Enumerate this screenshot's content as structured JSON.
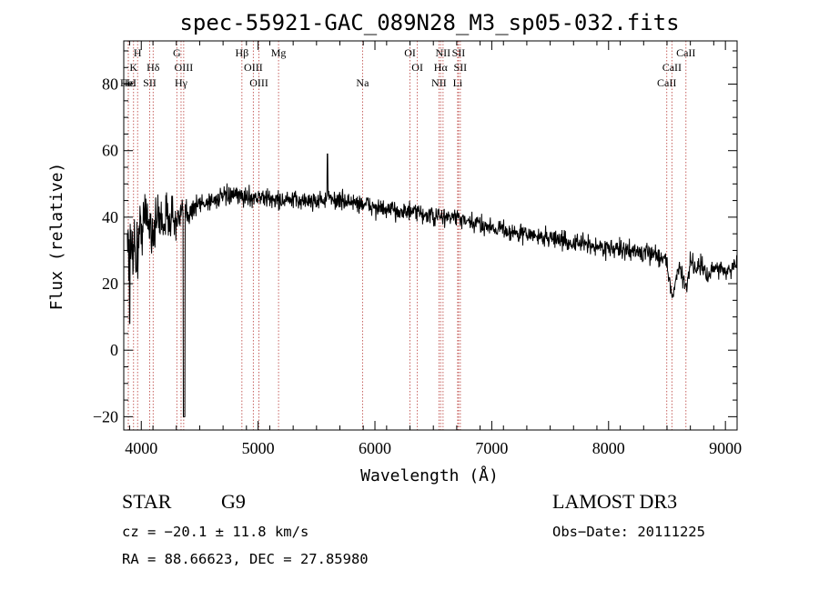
{
  "chart_data": {
    "type": "line",
    "title": "spec-55921-GAC_089N28_M3_sp05-032.fits",
    "xlabel": "Wavelength (Å)",
    "ylabel": "Flux (relative)",
    "xlim": [
      3850,
      9100
    ],
    "ylim": [
      -24,
      93
    ],
    "xticks": [
      4000,
      5000,
      6000,
      7000,
      8000,
      9000
    ],
    "yticks": [
      -20,
      0,
      20,
      40,
      60,
      80
    ],
    "series": [
      {
        "name": "flux",
        "anchors_x": [
          3880,
          3900,
          3930,
          3960,
          4000,
          4050,
          4100,
          4150,
          4200,
          4250,
          4300,
          4350,
          4400,
          4450,
          4500,
          4600,
          4700,
          4800,
          4900,
          5000,
          5100,
          5200,
          5300,
          5400,
          5500,
          5600,
          5700,
          5800,
          5900,
          6000,
          6100,
          6200,
          6300,
          6400,
          6500,
          6600,
          6700,
          6800,
          6900,
          7000,
          7100,
          7200,
          7300,
          7400,
          7500,
          7600,
          7700,
          7800,
          7900,
          8000,
          8100,
          8200,
          8300,
          8400,
          8450,
          8500,
          8542,
          8600,
          8662,
          8700,
          8750,
          8800,
          8850,
          8900,
          8950,
          9000,
          9050,
          9100
        ],
        "anchors_y": [
          36,
          30,
          33,
          28,
          38,
          40,
          36,
          40,
          39,
          41,
          38,
          40,
          42,
          43,
          44,
          45,
          46,
          46.5,
          46,
          46,
          45.5,
          45,
          45,
          45,
          45,
          45.5,
          45,
          44.5,
          44,
          43,
          42,
          42,
          41.5,
          41,
          40,
          40,
          40,
          38,
          38,
          37,
          36.5,
          35,
          35,
          34,
          34,
          33,
          32,
          32,
          31,
          31,
          30,
          30,
          29,
          29,
          28,
          27,
          15,
          26,
          18,
          27,
          25,
          26,
          21,
          25,
          25,
          24,
          24,
          27
        ],
        "noise_sigma_blue": 8,
        "noise_sigma_red": 2
      }
    ],
    "spectral_lines": [
      {
        "label": "H",
        "wavelength": 3968.5,
        "row": 1
      },
      {
        "label": "K",
        "wavelength": 3933.7,
        "row": 2
      },
      {
        "label": "Hε",
        "wavelength": 3889,
        "row": 3
      },
      {
        "label": "HeI",
        "wavelength": 3889,
        "row": 3
      },
      {
        "label": "SII",
        "wavelength": 4072,
        "row": 3
      },
      {
        "label": "Hδ",
        "wavelength": 4101.7,
        "row": 2
      },
      {
        "label": "G",
        "wavelength": 4304.4,
        "row": 1
      },
      {
        "label": "OIII",
        "wavelength": 4363,
        "row": 2
      },
      {
        "label": "Hγ",
        "wavelength": 4340.5,
        "row": 3
      },
      {
        "label": "Hβ",
        "wavelength": 4861.3,
        "row": 1
      },
      {
        "label": "OIII",
        "wavelength": 4959,
        "row": 2
      },
      {
        "label": "OIII",
        "wavelength": 5007,
        "row": 3
      },
      {
        "label": "Mg",
        "wavelength": 5175,
        "row": 1
      },
      {
        "label": "Na",
        "wavelength": 5894,
        "row": 3
      },
      {
        "label": "OI",
        "wavelength": 6300,
        "row": 1
      },
      {
        "label": "OI",
        "wavelength": 6363,
        "row": 2
      },
      {
        "label": "NII",
        "wavelength": 6548,
        "row": 3
      },
      {
        "label": "NII",
        "wavelength": 6583,
        "row": 1
      },
      {
        "label": "Hα",
        "wavelength": 6562.8,
        "row": 2
      },
      {
        "label": "SII",
        "wavelength": 6716,
        "row": 1
      },
      {
        "label": "SII",
        "wavelength": 6731,
        "row": 2
      },
      {
        "label": "Li",
        "wavelength": 6708,
        "row": 3
      },
      {
        "label": "CaII",
        "wavelength": 8662,
        "row": 1
      },
      {
        "label": "CaII",
        "wavelength": 8542,
        "row": 2
      },
      {
        "label": "CaII",
        "wavelength": 8498,
        "row": 3
      }
    ]
  },
  "info": {
    "class": "STAR",
    "subclass": "G9",
    "survey": "LAMOST DR3",
    "cz": "cz = −20.1 ± 11.8 km/s",
    "obs_date": "Obs−Date: 20111225",
    "radec": "RA =  88.66623, DEC =  27.85980"
  },
  "colors": {
    "line_marker": "#c0504d",
    "spectrum": "#000000",
    "axes": "#000000"
  }
}
